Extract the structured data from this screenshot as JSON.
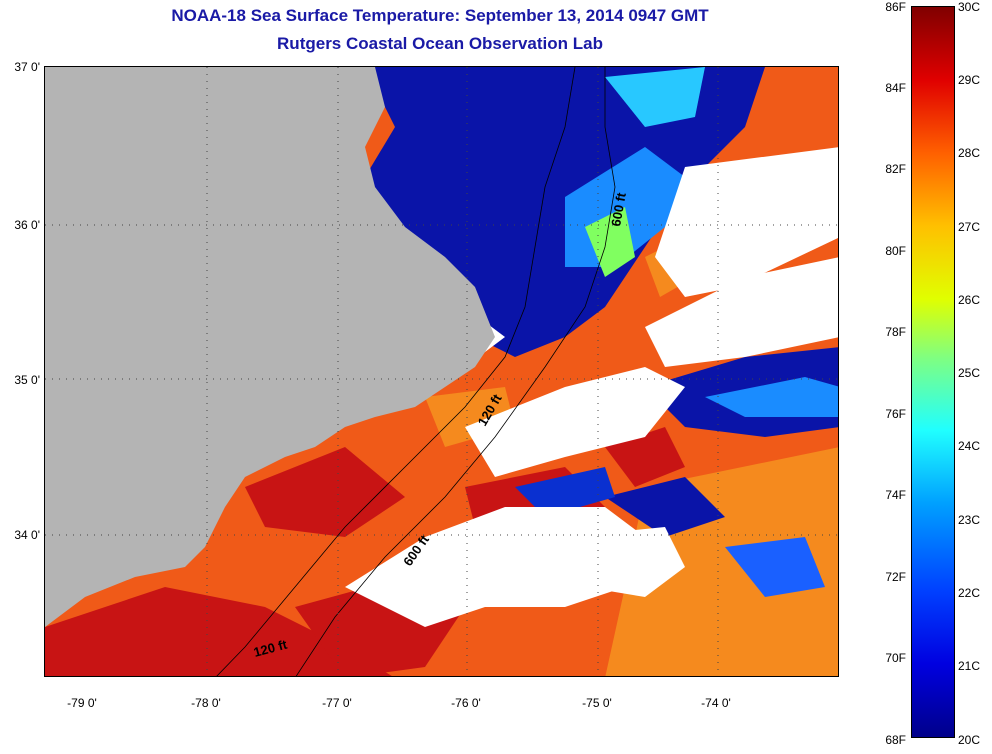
{
  "title": "NOAA-18 Sea Surface Temperature:  September 13, 2014 0947 GMT",
  "subtitle": "Rutgers Coastal Ocean Observation Lab",
  "lat_labels": [
    "37 0'",
    "36 0'",
    "35 0'",
    "34 0'"
  ],
  "lon_labels": [
    "-79 0'",
    "-78 0'",
    "-77 0'",
    "-76 0'",
    "-75 0'",
    "-74 0'"
  ],
  "isobaths": {
    "a": "600 ft",
    "b": "120 ft",
    "c": "600 ft",
    "d": "120 ft"
  },
  "colorbar": {
    "fahrenheit": [
      "86F",
      "84F",
      "82F",
      "80F",
      "78F",
      "76F",
      "74F",
      "72F",
      "70F",
      "68F"
    ],
    "celsius": [
      "30C",
      "29C",
      "28C",
      "27C",
      "26C",
      "25C",
      "24C",
      "23C",
      "22C",
      "21C",
      "20C"
    ]
  },
  "colors": {
    "land": "#b4b4b4",
    "cloud": "#ffffff",
    "cold": "#0a14a8",
    "warm": "#e8361c",
    "title": "#1a1aa6"
  }
}
